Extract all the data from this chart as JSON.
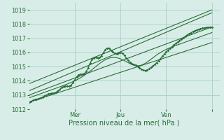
{
  "xlabel": "Pression niveau de la mer( hPa )",
  "ylim": [
    1012,
    1019.5
  ],
  "xlim": [
    0,
    100
  ],
  "yticks": [
    1012,
    1013,
    1014,
    1015,
    1016,
    1017,
    1018,
    1019
  ],
  "xtick_positions": [
    24,
    48,
    72,
    96
  ],
  "xtick_labels": [
    "Mer",
    "Jeu",
    "Ven",
    ""
  ],
  "bg_color": "#d8ede8",
  "grid_color": "#aacfc8",
  "line_color": "#2a6e3a",
  "text_color": "#2a6e3a",
  "xlabel_fontsize": 7.0,
  "tick_fontsize": 6.0
}
